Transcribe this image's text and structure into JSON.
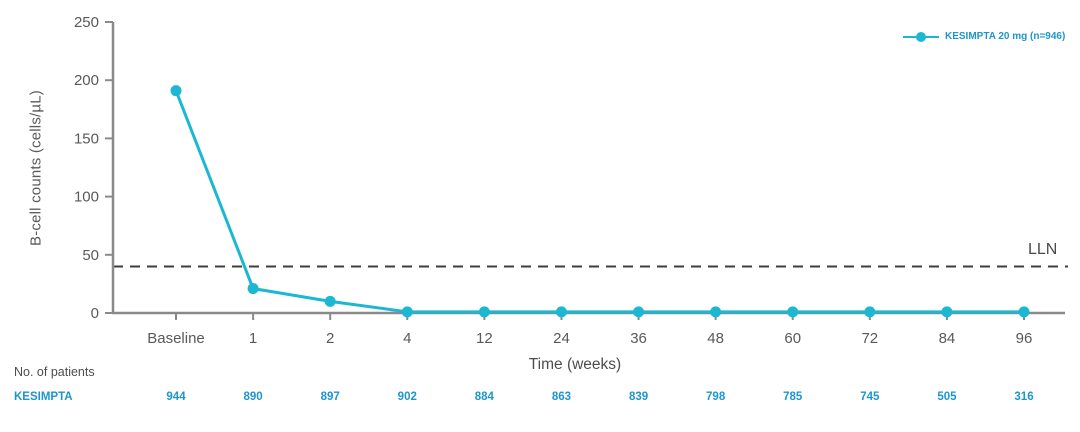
{
  "chart_data": {
    "type": "line",
    "title": "",
    "categories": [
      "Baseline",
      "1",
      "2",
      "4",
      "12",
      "24",
      "36",
      "48",
      "60",
      "72",
      "84",
      "96"
    ],
    "series": [
      {
        "name": "KESIMPTA 20 mg (n=946)",
        "values": [
          191,
          21,
          10,
          1,
          1,
          1,
          1,
          1,
          1,
          1,
          1,
          1
        ]
      }
    ],
    "xlabel": "Time (weeks)",
    "ylabel": "B-cell counts (cells/µL)",
    "ylim": [
      0,
      250
    ],
    "yticks": [
      0,
      50,
      100,
      150,
      200,
      250
    ],
    "grid": false,
    "legend_position": "top-right",
    "reference_line": {
      "label": "LLN",
      "value": 40,
      "style": "dashed"
    },
    "annotations": {
      "no_of_patients": {
        "label": "No. of patients",
        "row_label": "KESIMPTA",
        "values": [
          944,
          890,
          897,
          902,
          884,
          863,
          839,
          798,
          785,
          745,
          505,
          316
        ]
      }
    },
    "colors": {
      "line": "#1cb8d2",
      "blue_text": "#1e95cc",
      "axis": "#8a8a8a",
      "dash": "#3d3d3d",
      "tick_text": "#595959"
    }
  }
}
